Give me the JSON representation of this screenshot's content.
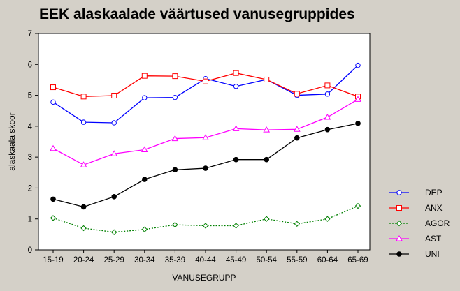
{
  "chart_data": {
    "type": "line",
    "title": "EEK alaskaalade väärtused vanusegruppides",
    "xlabel": "VANUSEGRUPP",
    "ylabel": "alaskaala skoor",
    "ylim": [
      0,
      7
    ],
    "yticks": [
      0,
      1,
      2,
      3,
      4,
      5,
      6,
      7
    ],
    "grid": false,
    "legend_position": "right",
    "categories": [
      "15-19",
      "20-24",
      "25-29",
      "30-34",
      "35-39",
      "40-44",
      "45-49",
      "50-54",
      "55-59",
      "60-64",
      "65-69"
    ],
    "series": [
      {
        "name": "DEP",
        "color": "#0000ff",
        "marker": "circle",
        "line": "solid",
        "values": [
          4.78,
          4.13,
          4.11,
          4.92,
          4.93,
          5.54,
          5.29,
          5.51,
          5.0,
          5.04,
          5.97
        ]
      },
      {
        "name": "ANX",
        "color": "#ff0000",
        "marker": "square",
        "line": "solid",
        "values": [
          5.26,
          4.96,
          4.99,
          5.63,
          5.62,
          5.45,
          5.72,
          5.51,
          5.05,
          5.32,
          4.96
        ]
      },
      {
        "name": "AGOR",
        "color": "#008000",
        "marker": "diamond",
        "line": "dotted",
        "values": [
          1.03,
          0.7,
          0.57,
          0.66,
          0.81,
          0.78,
          0.78,
          1.0,
          0.84,
          1.0,
          1.42
        ]
      },
      {
        "name": "AST",
        "color": "#ff00ff",
        "marker": "triangle",
        "line": "solid",
        "values": [
          3.28,
          2.75,
          3.11,
          3.24,
          3.6,
          3.63,
          3.92,
          3.88,
          3.9,
          4.29,
          4.87
        ]
      },
      {
        "name": "UNI",
        "color": "#000000",
        "marker": "filled-circle",
        "line": "solid",
        "values": [
          1.64,
          1.39,
          1.72,
          2.28,
          2.59,
          2.64,
          2.92,
          2.92,
          3.62,
          3.89,
          4.09
        ]
      }
    ]
  }
}
